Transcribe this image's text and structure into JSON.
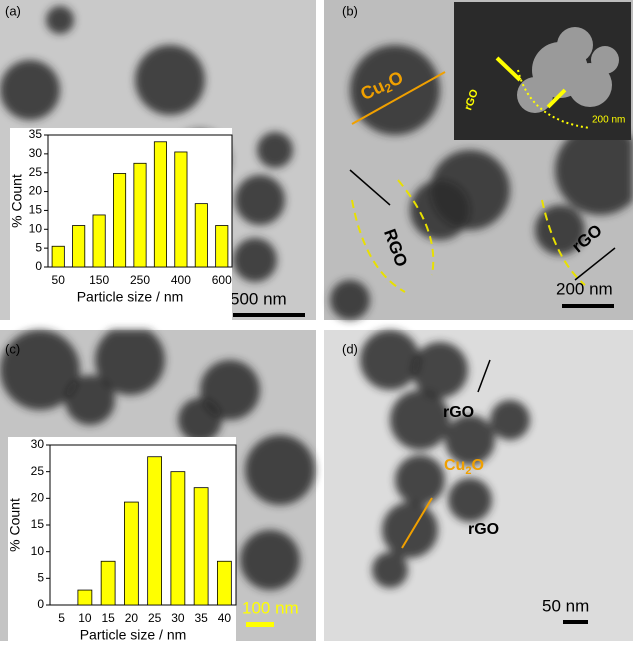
{
  "chart_data": [
    {
      "type": "bar",
      "ylabel": "% Count",
      "xlabel": "Particle size / nm",
      "categories": [
        "50",
        null,
        "150",
        null,
        "250",
        null,
        "400",
        null,
        "600"
      ],
      "values": [
        5.5,
        11,
        13.8,
        24.8,
        27.5,
        33.2,
        30.5,
        16.8,
        11
      ],
      "color": "#ffff00",
      "ylim": [
        0,
        35
      ],
      "yticks": [
        0,
        5,
        10,
        15,
        20,
        25,
        30,
        35
      ],
      "grid": false
    },
    {
      "type": "bar",
      "ylabel": "% Count",
      "xlabel": "Particle size / nm",
      "categories": [
        "5",
        "10",
        "15",
        "20",
        "25",
        "30",
        "35",
        "40"
      ],
      "values": [
        null,
        2.8,
        8.2,
        19.3,
        27.8,
        25,
        22,
        8.2
      ],
      "color": "#ffff00",
      "ylim": [
        0,
        30
      ],
      "yticks": [
        0,
        5,
        10,
        15,
        20,
        25,
        30
      ],
      "grid": false
    }
  ],
  "panels": {
    "a": {
      "label": "(a)",
      "scale": "500 nm"
    },
    "b": {
      "label": "(b)",
      "scale": "200 nm",
      "cu": [
        "Cu",
        "2",
        "O"
      ],
      "rgo1": "RGO",
      "rgo2": "rGO",
      "inset_rgo": "rGO",
      "inset_scale": "200 nm"
    },
    "c": {
      "label": "(c)",
      "scale": "100 nm"
    },
    "d": {
      "label": "(d)",
      "scale": "50 nm",
      "cu": [
        "Cu",
        "2",
        "O"
      ],
      "rgo1": "rGO",
      "rgo2": "rGO"
    }
  }
}
